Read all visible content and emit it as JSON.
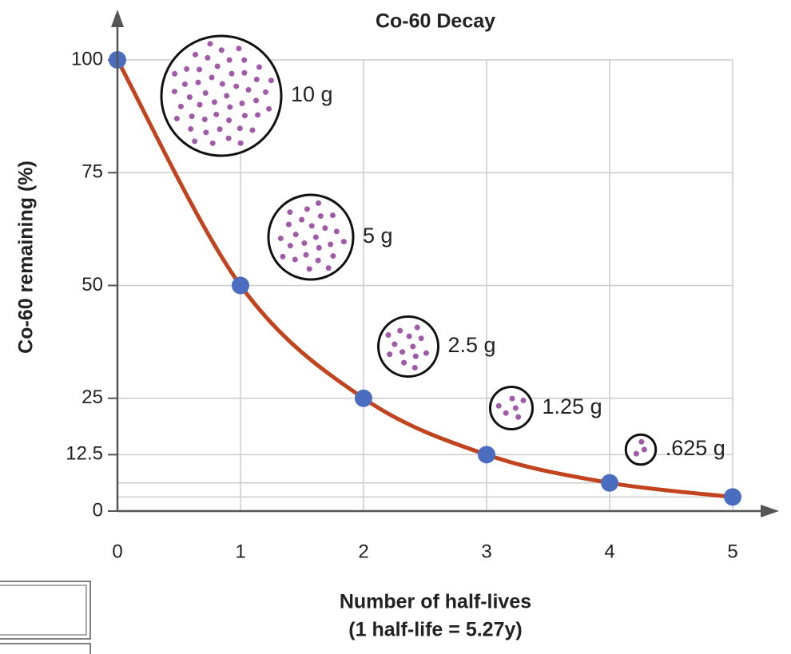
{
  "chart_data": {
    "type": "line",
    "title": "Co-60 Decay",
    "xlabel_lines": [
      "Number of half-lives",
      "(1 half-life = 5.27y)"
    ],
    "ylabel": "Co-60 remaining (%)",
    "x": [
      0,
      1,
      2,
      3,
      4,
      5
    ],
    "series": [
      {
        "color": "#c1441e",
        "marker_color": "#4a6dc0",
        "values": [
          100,
          50,
          25,
          12.5,
          6.25,
          3.125
        ]
      }
    ],
    "xlim": [
      0,
      5
    ],
    "xticks": [
      0,
      1,
      2,
      3,
      4,
      5
    ],
    "ylim": [
      0,
      100
    ],
    "yticks": [
      0,
      12.5,
      25,
      50,
      75,
      100
    ],
    "grid": true,
    "annotations": [
      {
        "value": 10,
        "label": "10 g"
      },
      {
        "value": 5,
        "label": "5 g"
      },
      {
        "value": 2.5,
        "label": "2.5 g"
      },
      {
        "value": 1.25,
        "label": "1.25 g"
      },
      {
        "value": 0.625,
        "label": ".625 g"
      }
    ],
    "dot_color": "#a05aa8"
  }
}
